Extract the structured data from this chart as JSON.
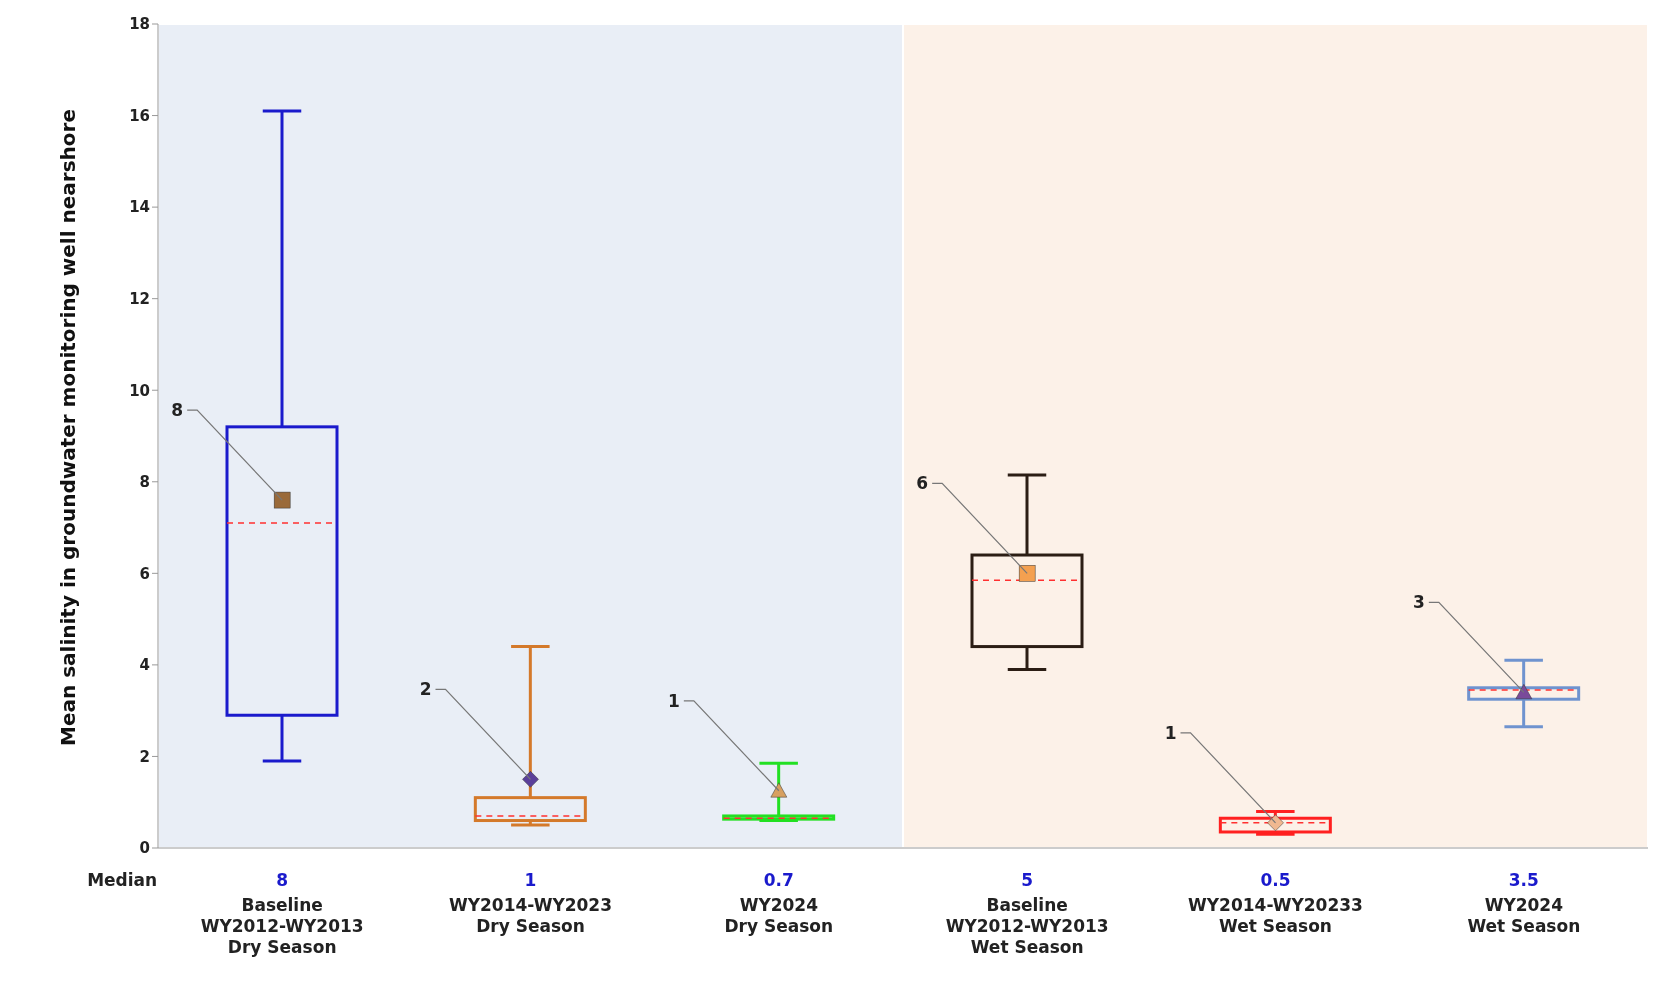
{
  "chart_data": {
    "type": "box",
    "ylabel": "Mean salinity in groundwater monitoring well nearshore",
    "categories": [
      "Baseline\nWY2012-WY2013\nDry Season",
      "WY2014-WY2023\nDry Season",
      "WY2024\nDry Season",
      "Baseline\nWY2012-WY2013\nWet Season",
      "WY2014-WY20233\nWet Season",
      "WY2024\nWet Season"
    ],
    "boxes": [
      {
        "low": 1.9,
        "q1": 2.9,
        "median": 7.1,
        "q3": 9.2,
        "high": 16.1
      },
      {
        "low": 0.5,
        "q1": 0.6,
        "median": 0.7,
        "q3": 1.1,
        "high": 4.4
      },
      {
        "low": 0.6,
        "q1": 0.63,
        "median": 0.65,
        "q3": 0.7,
        "high": 1.85
      },
      {
        "low": 3.9,
        "q1": 4.4,
        "median": 5.85,
        "q3": 6.4,
        "high": 8.15
      },
      {
        "low": 0.3,
        "q1": 0.35,
        "median": 0.55,
        "q3": 0.65,
        "high": 0.8
      },
      {
        "low": 2.65,
        "q1": 3.25,
        "median": 3.45,
        "q3": 3.5,
        "high": 4.1
      }
    ],
    "colors": [
      "#1a1acc",
      "#d4792a",
      "#22e022",
      "#2b1d14",
      "#ff2020",
      "#6f93cf"
    ],
    "series": [
      {
        "type": "scatter",
        "marker": "square",
        "values": [
          7.6,
          null,
          null,
          6.0,
          null,
          null
        ],
        "colors": [
          "#9a6a3a",
          null,
          null,
          "#f4a050",
          null,
          null
        ]
      },
      {
        "type": "scatter",
        "marker": "diamond",
        "values": [
          null,
          1.5,
          null,
          null,
          0.55,
          null
        ],
        "colors": [
          null,
          "#5a3f9a",
          null,
          null,
          "#f0b890",
          null
        ]
      },
      {
        "type": "scatter",
        "marker": "triangle",
        "values": [
          null,
          null,
          1.25,
          null,
          null,
          3.4
        ],
        "colors": [
          null,
          null,
          "#d7a060",
          null,
          null,
          "#7a4a9a"
        ]
      }
    ],
    "ylim": [
      0,
      18
    ],
    "yticks": [
      0,
      2,
      4,
      6,
      8,
      10,
      12,
      14,
      16,
      18
    ],
    "grid": false,
    "legend": false,
    "bands": [
      {
        "axis": "x",
        "from": "Baseline\nWY2012-WY2013\nDry Season",
        "to": "WY2024\nDry Season",
        "color": "#e9eef6"
      },
      {
        "axis": "x",
        "from": "Baseline\nWY2012-WY2013\nWet Season",
        "to": "WY2024\nWet Season",
        "color": "#fcf1e8"
      }
    ],
    "annotations": [
      "Median",
      "8",
      "1",
      "0.7",
      "5",
      "0.5",
      "3.5",
      {
        "text": "8",
        "x": "Baseline\nWY2012-WY2013\nDry Season",
        "y": 7.6
      },
      {
        "text": "2",
        "x": "WY2014-WY2023\nDry Season",
        "y": 1.5
      },
      {
        "text": "1",
        "x": "WY2024\nDry Season",
        "y": 1.25
      },
      {
        "text": "6",
        "x": "Baseline\nWY2012-WY2013\nWet Season",
        "y": 6.0
      },
      {
        "text": "1",
        "x": "WY2014-WY20233\nWet Season",
        "y": 0.55
      },
      {
        "text": "3",
        "x": "WY2024\nWet Season",
        "y": 3.4
      }
    ]
  }
}
